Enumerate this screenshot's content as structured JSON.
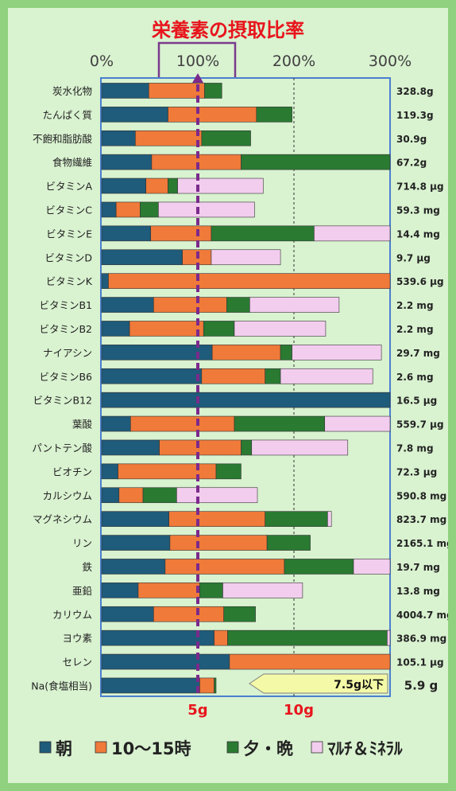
{
  "chart_data": {
    "type": "bar",
    "stacked": true,
    "orientation": "horizontal",
    "title": "栄養素の摂取比率",
    "x_ticks": [
      "0%",
      "100%",
      "200%",
      "300%"
    ],
    "xlim": [
      0,
      300
    ],
    "bottom_labels": [
      "5g",
      "10g"
    ],
    "legend_placement": "bottom",
    "series": [
      {
        "name": "朝",
        "color": "#1f5b7a"
      },
      {
        "name": "10～15時",
        "color": "#ef7a3a"
      },
      {
        "name": "夕・晩",
        "color": "#2a7a32"
      },
      {
        "name": "ﾏﾙﾁ＆ﾐﾈﾗﾙ",
        "color": "#f2cdee"
      }
    ],
    "rows": [
      {
        "label": "炭水化物",
        "amount": "328.8g",
        "values": [
          49,
          58,
          18,
          0
        ]
      },
      {
        "label": "たんぱく質",
        "amount": "119.3g",
        "values": [
          69,
          92,
          37,
          0
        ]
      },
      {
        "label": "不飽和脂肪酸",
        "amount": "30.9g",
        "values": [
          35,
          69,
          51,
          0
        ]
      },
      {
        "label": "食物繊維",
        "amount": "67.2g",
        "values": [
          52,
          93,
          155,
          0
        ]
      },
      {
        "label": "ビタミンA",
        "amount": "714.8 μg",
        "values": [
          46,
          23,
          10,
          89
        ]
      },
      {
        "label": "ビタミンC",
        "amount": "59.3 mg",
        "values": [
          15,
          25,
          19,
          100
        ]
      },
      {
        "label": "ビタミンE",
        "amount": "14.4 mg",
        "values": [
          51,
          63,
          107,
          80
        ]
      },
      {
        "label": "ビタミンD",
        "amount": "9.7 μg",
        "values": [
          84,
          30,
          0,
          72
        ]
      },
      {
        "label": "ビタミンK",
        "amount": "539.6 μg",
        "values": [
          7,
          293,
          0,
          0
        ]
      },
      {
        "label": "ビタミンB1",
        "amount": "2.2 mg",
        "values": [
          54,
          76,
          24,
          93
        ]
      },
      {
        "label": "ビタミンB2",
        "amount": "2.2 mg",
        "values": [
          29,
          77,
          32,
          95
        ]
      },
      {
        "label": "ナイアシン",
        "amount": "29.7 mg",
        "values": [
          115,
          71,
          12,
          93
        ]
      },
      {
        "label": "ビタミンB6",
        "amount": "2.6 mg",
        "values": [
          104,
          66,
          16,
          96
        ]
      },
      {
        "label": "ビタミンB12",
        "amount": "16.5 μg",
        "values": [
          300,
          0,
          0,
          0
        ]
      },
      {
        "label": "葉酸",
        "amount": "559.7 μg",
        "values": [
          30,
          108,
          94,
          68
        ]
      },
      {
        "label": "パントテン酸",
        "amount": "7.8 mg",
        "values": [
          60,
          85,
          11,
          100
        ]
      },
      {
        "label": "ビオチン",
        "amount": "72.3 μg",
        "values": [
          17,
          102,
          26,
          0
        ]
      },
      {
        "label": "カルシウム",
        "amount": "590.8 mg",
        "values": [
          18,
          25,
          35,
          84
        ]
      },
      {
        "label": "マグネシウム",
        "amount": "823.7 mg",
        "values": [
          70,
          100,
          65,
          4
        ]
      },
      {
        "label": "リン",
        "amount": "2165.1 mg",
        "values": [
          71,
          101,
          45,
          0
        ]
      },
      {
        "label": "鉄",
        "amount": "19.7 mg",
        "values": [
          66,
          124,
          72,
          38
        ]
      },
      {
        "label": "亜鉛",
        "amount": "13.8 mg",
        "values": [
          38,
          64,
          24,
          83
        ]
      },
      {
        "label": "カリウム",
        "amount": "4004.7 mg",
        "values": [
          54,
          73,
          33,
          0
        ]
      },
      {
        "label": "ヨウ素",
        "amount": "386.9 mg",
        "values": [
          117,
          14,
          166,
          3
        ]
      },
      {
        "label": "セレン",
        "amount": "105.1 μg",
        "values": [
          133,
          167,
          0,
          0
        ]
      },
      {
        "label": "Na(食塩相当)",
        "amount": "5.9 g",
        "values": [
          102,
          15,
          2,
          0
        ]
      }
    ],
    "reference_line": 100,
    "annotation": "7.5g以下"
  }
}
